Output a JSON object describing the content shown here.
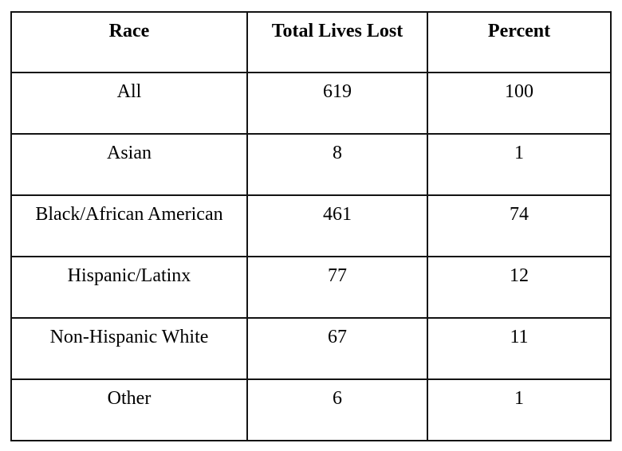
{
  "page": {
    "background_color": "#ffffff",
    "border_color": "#131313",
    "text_color": "#000000"
  },
  "table": {
    "headers": [
      "Race",
      "Total Lives Lost",
      "Percent"
    ],
    "rows": [
      {
        "race": "All",
        "total_lives_lost": "619",
        "percent": "100"
      },
      {
        "race": "Asian",
        "total_lives_lost": "8",
        "percent": "1"
      },
      {
        "race": "Black/African American",
        "total_lives_lost": "461",
        "percent": "74"
      },
      {
        "race": "Hispanic/Latinx",
        "total_lives_lost": "77",
        "percent": "12"
      },
      {
        "race": "Non-Hispanic White",
        "total_lives_lost": "67",
        "percent": "11"
      },
      {
        "race": "Other",
        "total_lives_lost": "6",
        "percent": "1"
      }
    ]
  },
  "chart_data": {
    "type": "table",
    "columns": [
      "Race",
      "Total Lives Lost",
      "Percent"
    ],
    "rows": [
      [
        "All",
        619,
        100
      ],
      [
        "Asian",
        8,
        1
      ],
      [
        "Black/African American",
        461,
        74
      ],
      [
        "Hispanic/Latinx",
        77,
        12
      ],
      [
        "Non-Hispanic White",
        67,
        11
      ],
      [
        "Other",
        6,
        1
      ]
    ]
  }
}
